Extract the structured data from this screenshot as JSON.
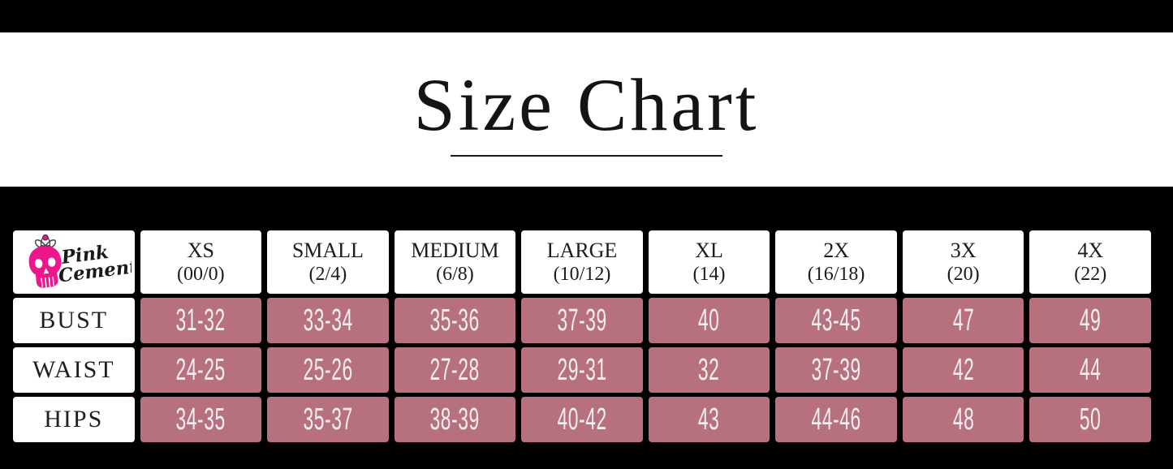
{
  "title": "Size Chart",
  "brand": {
    "word1": "Pink",
    "word2": "Cement"
  },
  "colors": {
    "background": "#000000",
    "band_white": "#ffffff",
    "cell_pink": "#b7707d",
    "value_text": "#f6eff1",
    "logo_pink": "#ed168c",
    "text_dark": "#1c1c1c"
  },
  "chart_data": {
    "type": "table",
    "title": "Size Chart",
    "columns": [
      {
        "size": "XS",
        "range": "(00/0)"
      },
      {
        "size": "SMALL",
        "range": "(2/4)"
      },
      {
        "size": "MEDIUM",
        "range": "(6/8)"
      },
      {
        "size": "LARGE",
        "range": "(10/12)"
      },
      {
        "size": "XL",
        "range": "(14)"
      },
      {
        "size": "2X",
        "range": "(16/18)"
      },
      {
        "size": "3X",
        "range": "(20)"
      },
      {
        "size": "4X",
        "range": "(22)"
      }
    ],
    "rows": [
      {
        "label": "BUST",
        "values": [
          "31-32",
          "33-34",
          "35-36",
          "37-39",
          "40",
          "43-45",
          "47",
          "49"
        ]
      },
      {
        "label": "WAIST",
        "values": [
          "24-25",
          "25-26",
          "27-28",
          "29-31",
          "32",
          "37-39",
          "42",
          "44"
        ]
      },
      {
        "label": "HIPS",
        "values": [
          "34-35",
          "35-37",
          "38-39",
          "40-42",
          "43",
          "44-46",
          "48",
          "50"
        ]
      }
    ]
  }
}
